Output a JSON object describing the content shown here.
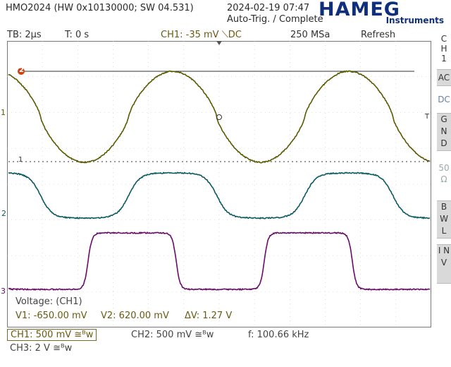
{
  "header": {
    "device": "HMO2024 (HW 0x10130000; SW 04.531)",
    "datetime": "2024-02-19 07:47",
    "status": "Auto-Trig. / Complete",
    "logo": "HAMEG",
    "logo_sub": "Instruments"
  },
  "statusbar": {
    "timebase": "TB: 2µs",
    "trigger_time": "T: 0 s",
    "ch1_trigger": "CH1: -35 mV ⟍DC",
    "sample_rate": "250 MSa",
    "mode": "Refresh"
  },
  "sidebar": {
    "channel": [
      "C",
      "H",
      "1"
    ],
    "buttons": [
      {
        "label": "AC"
      },
      {
        "label": "DC"
      },
      {
        "label": "G N D"
      },
      {
        "label": "50 Ω"
      },
      {
        "label": "B W L"
      },
      {
        "label": "I N V"
      }
    ]
  },
  "markers": {
    "ch1": "1",
    "ch2": "2",
    "ch3": "3",
    "trigger_level": "1",
    "trigger_pos": "T",
    "cursor2": "2"
  },
  "cursor_readout": {
    "title": "Voltage: (CH1)",
    "v1": "V1: -650.00 mV",
    "v2": "V2: 620.00 mV",
    "dv": "ΔV: 1.27 V"
  },
  "footer": {
    "ch1": "CH1: 500 mV ≅ᴮw",
    "ch2": "CH2: 500 mV ≅ᴮw",
    "freq": "f: 100.66 kHz",
    "ch3": "CH3: 2 V ≅ᴮw"
  },
  "colors": {
    "ch1": "#5a5a00",
    "ch2": "#0b5a60",
    "ch3": "#6a0a6a",
    "grid": "#c8c8c8"
  }
}
